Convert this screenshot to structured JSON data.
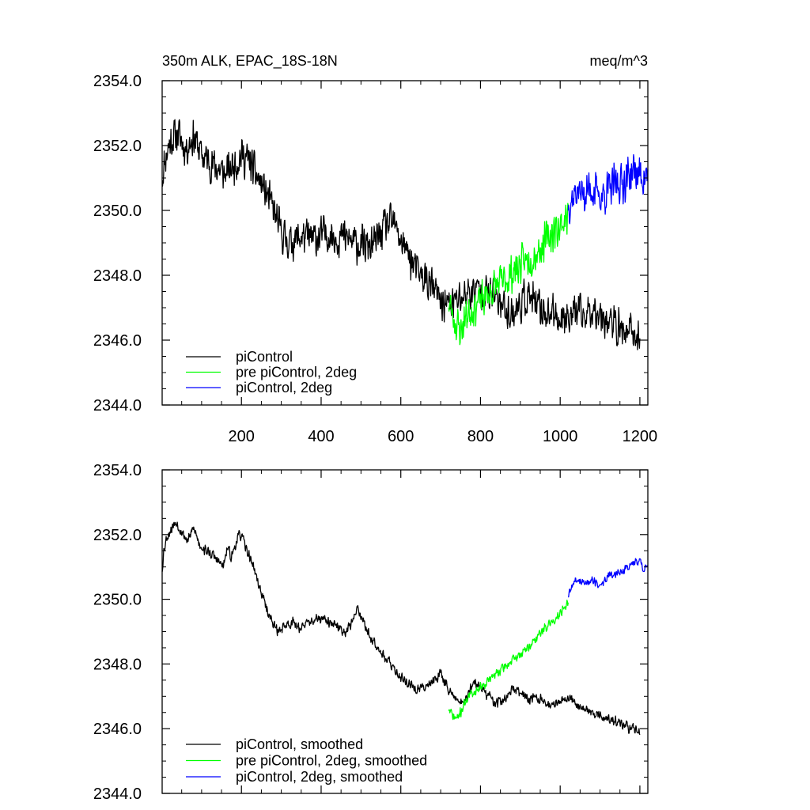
{
  "chart_data": [
    {
      "type": "line",
      "title_left": "350m ALK, EPAC_18S-18N",
      "title_right": "meq/m^3",
      "xlim": [
        1,
        1220
      ],
      "ylim": [
        2344,
        2354
      ],
      "xticks": [
        200,
        400,
        600,
        800,
        1000,
        1200
      ],
      "xtick_labels": [
        "200",
        "400",
        "600",
        "800",
        "1000",
        "1200"
      ],
      "yticks": [
        2344,
        2346,
        2348,
        2350,
        2352,
        2354
      ],
      "ytick_labels": [
        "2344.0",
        "2346.0",
        "2348.0",
        "2350.0",
        "2352.0",
        "2354.0"
      ],
      "legend_position": "bottom-left",
      "series": [
        {
          "name": "piControl",
          "color": "#000000",
          "noise": 0.7,
          "seed": 11,
          "x": [
            1,
            8,
            20,
            40,
            60,
            80,
            100,
            130,
            160,
            180,
            200,
            220,
            240,
            260,
            280,
            300,
            320,
            350,
            380,
            410,
            440,
            470,
            500,
            530,
            560,
            580,
            600,
            620,
            640,
            660,
            680,
            700,
            720,
            740,
            760,
            780,
            800,
            820,
            840,
            860,
            880,
            900,
            920,
            940,
            960,
            980,
            1000,
            1020,
            1040,
            1060,
            1080,
            1100,
            1120,
            1140,
            1160,
            1180,
            1200
          ],
          "values": [
            2351.0,
            2351.6,
            2352.1,
            2352.4,
            2351.9,
            2352.3,
            2351.7,
            2351.4,
            2351.1,
            2351.4,
            2351.7,
            2351.5,
            2351.0,
            2350.6,
            2350.0,
            2349.3,
            2349.0,
            2349.2,
            2349.1,
            2349.3,
            2349.2,
            2349.1,
            2348.9,
            2348.9,
            2349.5,
            2349.6,
            2349.1,
            2348.6,
            2348.1,
            2347.9,
            2347.6,
            2347.2,
            2347.1,
            2347.2,
            2347.4,
            2347.5,
            2347.6,
            2347.4,
            2347.3,
            2347.0,
            2346.8,
            2347.1,
            2347.4,
            2347.0,
            2346.9,
            2346.8,
            2346.7,
            2346.8,
            2346.9,
            2346.7,
            2347.0,
            2346.9,
            2346.6,
            2346.4,
            2346.3,
            2346.2,
            2346.0
          ]
        },
        {
          "name": "pre piControl, 2deg",
          "color": "#00ff00",
          "noise": 0.7,
          "seed": 23,
          "x": [
            720,
            735,
            750,
            765,
            780,
            800,
            820,
            840,
            860,
            880,
            900,
            920,
            940,
            960,
            980,
            1000,
            1020
          ],
          "values": [
            2347.2,
            2346.6,
            2346.3,
            2346.8,
            2347.0,
            2347.2,
            2347.4,
            2347.7,
            2347.8,
            2348.1,
            2348.3,
            2348.5,
            2348.7,
            2349.0,
            2349.3,
            2349.5,
            2349.9
          ]
        },
        {
          "name": "piControl, 2deg",
          "color": "#0000ff",
          "noise": 0.75,
          "seed": 37,
          "x": [
            1020,
            1040,
            1060,
            1080,
            1100,
            1120,
            1140,
            1160,
            1180,
            1200,
            1220
          ],
          "values": [
            2350.2,
            2350.6,
            2350.5,
            2350.7,
            2350.4,
            2350.6,
            2350.8,
            2350.9,
            2351.2,
            2351.1,
            2351.0
          ]
        }
      ]
    },
    {
      "type": "line",
      "xlim": [
        1,
        1220
      ],
      "ylim": [
        2344,
        2354
      ],
      "xticks": [
        200,
        400,
        600,
        800,
        1000,
        1200
      ],
      "yticks": [
        2344,
        2346,
        2348,
        2350,
        2352,
        2354
      ],
      "ytick_labels": [
        "2344.0",
        "2346.0",
        "2348.0",
        "2350.0",
        "2352.0",
        "2354.0"
      ],
      "legend_position": "bottom-left",
      "series": [
        {
          "name": "piControl, smoothed",
          "color": "#000000",
          "noise": 0.2,
          "seed": 53,
          "x": [
            1,
            5,
            12,
            20,
            35,
            50,
            65,
            80,
            95,
            110,
            125,
            140,
            155,
            165,
            175,
            190,
            200,
            210,
            225,
            240,
            255,
            270,
            290,
            310,
            330,
            350,
            370,
            400,
            430,
            460,
            480,
            490,
            500,
            520,
            540,
            560,
            580,
            600,
            620,
            640,
            660,
            680,
            700,
            720,
            740,
            760,
            780,
            800,
            820,
            840,
            860,
            880,
            900,
            920,
            940,
            960,
            980,
            1000,
            1020,
            1040,
            1060,
            1080,
            1100,
            1120,
            1140,
            1160,
            1180,
            1200
          ],
          "values": [
            2350.9,
            2351.5,
            2351.9,
            2352.1,
            2352.4,
            2352.1,
            2351.8,
            2352.2,
            2351.7,
            2351.5,
            2351.4,
            2351.2,
            2351.0,
            2351.6,
            2351.3,
            2351.9,
            2352.0,
            2351.6,
            2351.2,
            2350.6,
            2350.0,
            2349.5,
            2349.0,
            2349.2,
            2349.3,
            2349.1,
            2349.3,
            2349.4,
            2349.2,
            2349.0,
            2349.3,
            2349.8,
            2349.5,
            2348.9,
            2348.6,
            2348.2,
            2347.9,
            2347.6,
            2347.4,
            2347.2,
            2347.3,
            2347.5,
            2347.7,
            2347.2,
            2346.9,
            2346.8,
            2347.4,
            2347.3,
            2347.0,
            2346.8,
            2346.9,
            2347.2,
            2347.1,
            2346.9,
            2347.0,
            2346.8,
            2346.7,
            2346.9,
            2347.0,
            2346.8,
            2346.6,
            2346.5,
            2346.4,
            2346.3,
            2346.2,
            2346.1,
            2346.0,
            2345.9
          ]
        },
        {
          "name": "pre piControl, 2deg, smoothed",
          "color": "#00ff00",
          "noise": 0.18,
          "seed": 71,
          "x": [
            720,
            730,
            740,
            750,
            760,
            770,
            780,
            800,
            820,
            840,
            860,
            880,
            900,
            920,
            940,
            960,
            980,
            1000,
            1020
          ],
          "values": [
            2346.6,
            2346.4,
            2346.3,
            2346.5,
            2346.8,
            2347.0,
            2347.1,
            2347.3,
            2347.5,
            2347.7,
            2347.9,
            2348.1,
            2348.3,
            2348.5,
            2348.8,
            2349.1,
            2349.3,
            2349.6,
            2349.9
          ]
        },
        {
          "name": "piControl, 2deg, smoothed",
          "color": "#0000ff",
          "noise": 0.15,
          "seed": 89,
          "x": [
            1020,
            1030,
            1040,
            1060,
            1080,
            1100,
            1120,
            1140,
            1160,
            1180,
            1200,
            1210,
            1220
          ],
          "values": [
            2350.1,
            2350.4,
            2350.6,
            2350.5,
            2350.6,
            2350.4,
            2350.7,
            2350.8,
            2350.9,
            2351.1,
            2351.2,
            2350.9,
            2351.1
          ]
        }
      ]
    }
  ]
}
